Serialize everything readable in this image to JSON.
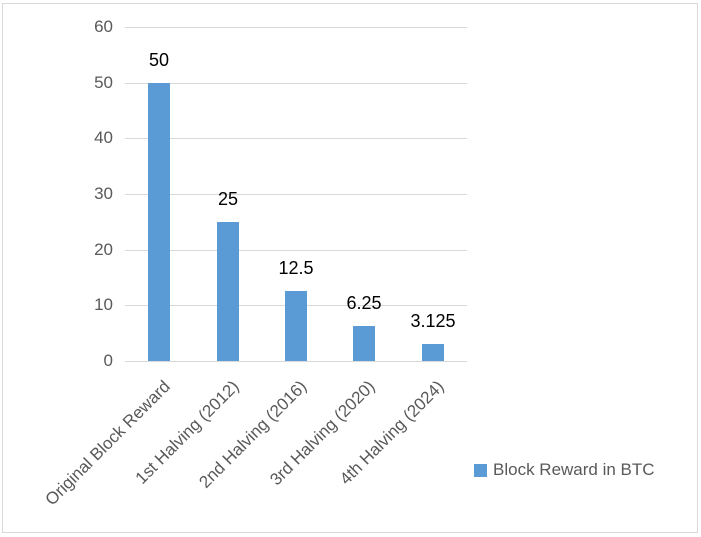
{
  "chart_data": {
    "type": "bar",
    "title": "",
    "xlabel": "",
    "ylabel": "",
    "categories": [
      "Original Block Reward",
      "1st Halving (2012)",
      "2nd Halving (2016)",
      "3rd Halving (2020)",
      "4th Halving (2024)"
    ],
    "series": [
      {
        "name": "Block Reward in BTC",
        "color": "#5b9bd5",
        "values": [
          50,
          25,
          12.5,
          6.25,
          3.125
        ],
        "data_labels": [
          "50",
          "25",
          "12.5",
          "6.25",
          "3.125"
        ]
      }
    ],
    "ylim": [
      0,
      60
    ],
    "yticks": [
      "0",
      "10",
      "20",
      "30",
      "40",
      "50",
      "60"
    ],
    "grid": true,
    "legend_position": "right-bottom"
  },
  "legend": {
    "label": "Block Reward in BTC",
    "color": "#5b9bd5"
  }
}
